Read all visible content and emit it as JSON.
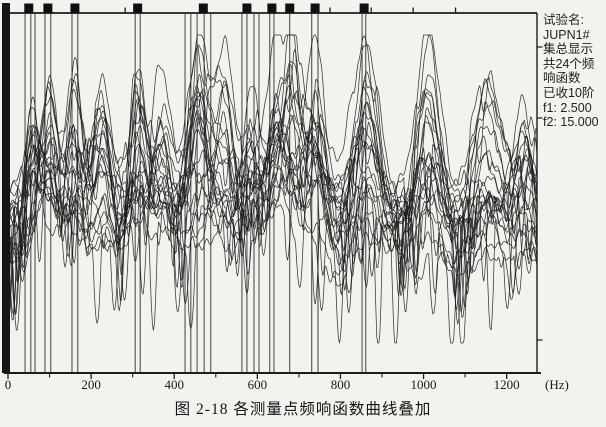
{
  "figure": {
    "caption": "图 2-18  各测量点频响函数曲线叠加"
  },
  "info_panel": {
    "test_name_label": "试验名:",
    "test_name_value": "JUPN1#",
    "display_mode": "集总显示",
    "frf_count_line1": "共24个频",
    "frf_count_line2": "响函数",
    "modes_collected": "已收10阶",
    "f1_line": "f1: 2.500",
    "f2_line": "f2: 15.000"
  },
  "chart_data": {
    "type": "line",
    "title": "各测量点频响函数曲线叠加",
    "xlabel": "(Hz)",
    "x_unit": "Hz",
    "xlim": [
      0,
      1280
    ],
    "x_ticks": [
      0,
      200,
      400,
      600,
      800,
      1000,
      1200
    ],
    "x_minor_ticks": [
      100,
      300,
      500,
      700,
      900,
      1100
    ],
    "num_curves": 24,
    "modes_collected": 10,
    "f1": 2.5,
    "f2": 15.0,
    "test_name": "JUPN1#",
    "mode_marker_freqs_hz": [
      50,
      96,
      161,
      312,
      470,
      575,
      635,
      678,
      739,
      857
    ],
    "cursor_line_freqs_hz": [
      41,
      55,
      65,
      89,
      103,
      154,
      168,
      306,
      318,
      426,
      440,
      455,
      472,
      488,
      563,
      575,
      592,
      604,
      630,
      640,
      678,
      731,
      746,
      852,
      861
    ],
    "top_tick_freqs_hz": [
      282,
      775,
      874,
      975,
      1077
    ],
    "curve_peaks": [
      {
        "f": 60,
        "w": 16,
        "a": 112
      },
      {
        "f": 100,
        "w": 18,
        "a": 146
      },
      {
        "f": 160,
        "w": 20,
        "a": 158
      },
      {
        "f": 225,
        "w": 22,
        "a": 150
      },
      {
        "f": 312,
        "w": 20,
        "a": 146
      },
      {
        "f": 370,
        "w": 22,
        "a": 139
      },
      {
        "f": 460,
        "w": 26,
        "a": 146
      },
      {
        "f": 520,
        "w": 22,
        "a": 142
      },
      {
        "f": 585,
        "w": 22,
        "a": 128
      },
      {
        "f": 645,
        "w": 20,
        "a": 142
      },
      {
        "f": 685,
        "w": 20,
        "a": 150
      },
      {
        "f": 740,
        "w": 22,
        "a": 135
      },
      {
        "f": 860,
        "w": 28,
        "a": 158
      },
      {
        "f": 1010,
        "w": 26,
        "a": 146
      },
      {
        "f": 1150,
        "w": 32,
        "a": 128
      },
      {
        "f": 1245,
        "w": 26,
        "a": 98
      }
    ],
    "ink_color": "#1c1c1c",
    "paper_color": "#f4f2ee"
  }
}
